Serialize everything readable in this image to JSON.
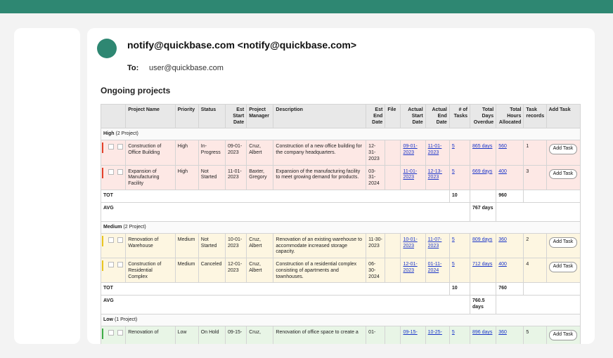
{
  "email": {
    "from": "notify@quickbase.com <notify@quickbase.com>",
    "to_label": "To:",
    "to": "user@quickbase.com",
    "heading": "Ongoing projects"
  },
  "colors": {
    "brand": "#2e8772",
    "high": "#e2402a",
    "medium": "#e8c421",
    "low": "#3dab46",
    "link": "#1a35c9"
  },
  "table": {
    "headers": [
      "Project Name",
      "Priority",
      "Status",
      "Est Start Date",
      "Project Manager",
      "Description",
      "Est End Date",
      "File",
      "Actual Start Date",
      "Actual End Date",
      "# of Tasks",
      "Total Days Overdue",
      "Total Hours Allocated",
      "Task records",
      "Add Task"
    ],
    "groups": [
      {
        "label": "High",
        "count": "(2 Project)",
        "rows": [
          {
            "name": "Construction of Office Building",
            "priority": "High",
            "status": "In-Progress",
            "est_start": "09-01-2023",
            "manager": "Cruz, Albert",
            "description": "Construction of a new office building for the company headquarters.",
            "est_end": "12-31-2023",
            "file": "",
            "actual_start": "09-01-2023",
            "actual_end": "11-01-2023",
            "tasks": "5",
            "overdue": "865 days",
            "hours": "560",
            "task_records": "1",
            "add_task": "Add Task"
          },
          {
            "name": "Expansion of Manufacturing Facility",
            "priority": "High",
            "status": "Not Started",
            "est_start": "11-01-2023",
            "manager": "Baxter, Gregory",
            "description": "Expansion of the manufacturing facility to meet growing demand for products.",
            "est_end": "03-31-2024",
            "file": "",
            "actual_start": "11-01-2023",
            "actual_end": "12-13-2023",
            "tasks": "5",
            "overdue": "669 days",
            "hours": "400",
            "task_records": "3",
            "add_task": "Add Task"
          }
        ],
        "tot_label": "TOT",
        "tot_tasks": "10",
        "tot_hours": "960",
        "avg_label": "AVG",
        "avg_overdue": "767 days"
      },
      {
        "label": "Medium",
        "count": "(2 Project)",
        "rows": [
          {
            "name": "Renovation of Warehouse",
            "priority": "Medium",
            "status": "Not Started",
            "est_start": "10-01-2023",
            "manager": "Cruz, Albert",
            "description": "Renovation of an existing warehouse to accommodate increased storage capacity.",
            "est_end": "11-30-2023",
            "file": "",
            "actual_start": "10-01-2023",
            "actual_end": "11-07-2023",
            "tasks": "5",
            "overdue": "809 days",
            "hours": "360",
            "task_records": "2",
            "add_task": "Add Task"
          },
          {
            "name": "Construction of Residential Complex",
            "priority": "Medium",
            "status": "Canceled",
            "est_start": "12-01-2023",
            "manager": "Cruz, Albert",
            "description": "Construction of a residential complex consisting of apartments and townhouses.",
            "est_end": "06-30-2024",
            "file": "",
            "actual_start": "12-01-2023",
            "actual_end": "01-11-2024",
            "tasks": "5",
            "overdue": "712 days",
            "hours": "400",
            "task_records": "4",
            "add_task": "Add Task"
          }
        ],
        "tot_label": "TOT",
        "tot_tasks": "10",
        "tot_hours": "760",
        "avg_label": "AVG",
        "avg_overdue": "760.5 days"
      },
      {
        "label": "Low",
        "count": "(1 Project)",
        "rows": [
          {
            "name": "Renovation of",
            "priority": "Low",
            "status": "On Hold",
            "est_start": "09-15-",
            "manager": "Cruz,",
            "description": "Renovation of office space to create a",
            "est_end": "01-",
            "file": "",
            "actual_start": "09-15-",
            "actual_end": "10-25-",
            "tasks": "5",
            "overdue": "896 days",
            "hours": "360",
            "task_records": "5",
            "add_task": "Add Task"
          }
        ]
      }
    ]
  }
}
